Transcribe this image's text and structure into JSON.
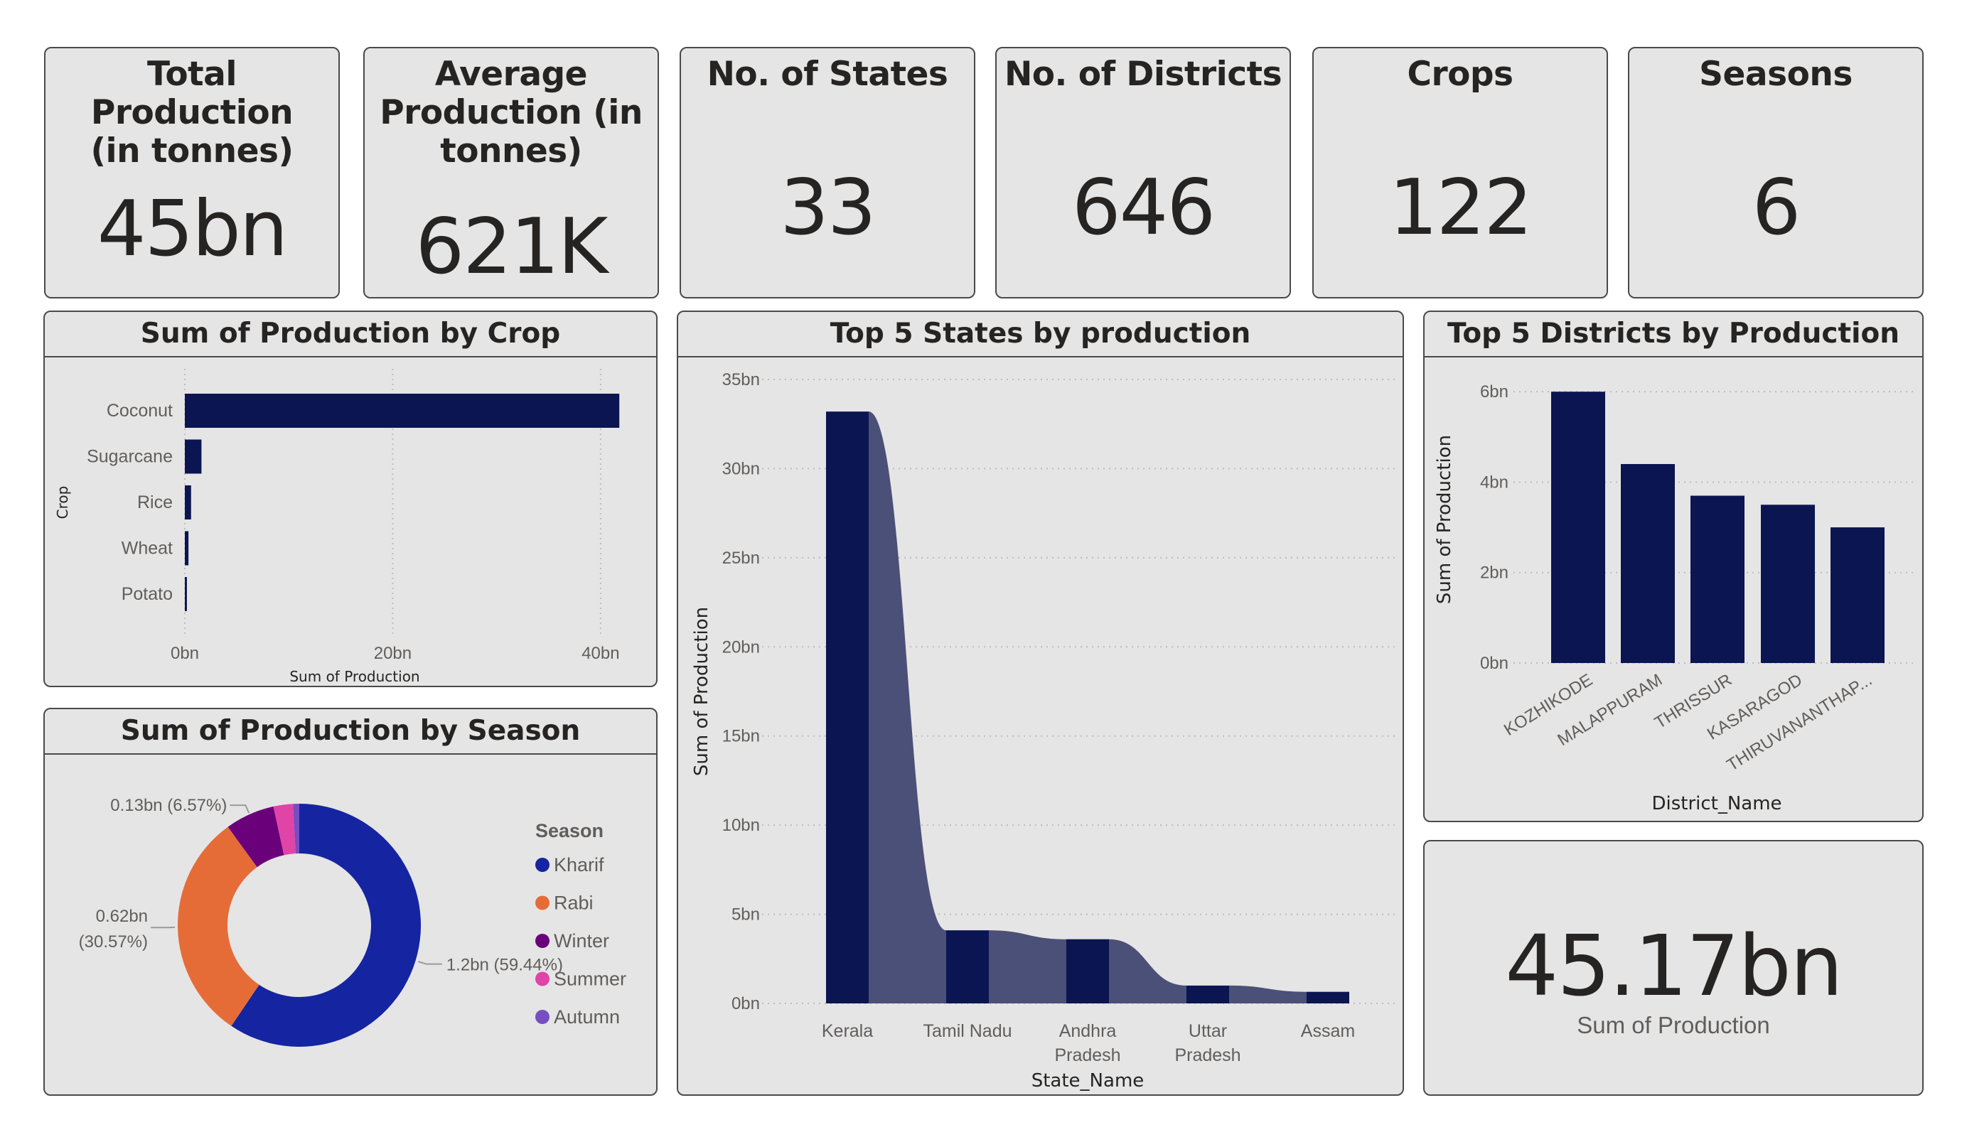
{
  "kpis": [
    {
      "title_lines": [
        "Total Production",
        "(in tonnes)"
      ],
      "value": "45bn"
    },
    {
      "title_lines": [
        "Average",
        "Production (in",
        "tonnes)"
      ],
      "value": "621K"
    },
    {
      "title_lines": [
        "No. of States"
      ],
      "value": "33"
    },
    {
      "title_lines": [
        "No. of Districts"
      ],
      "value": "646"
    },
    {
      "title_lines": [
        "Crops"
      ],
      "value": "122"
    },
    {
      "title_lines": [
        "Seasons"
      ],
      "value": "6"
    }
  ],
  "big_card": {
    "value": "45.17bn",
    "label": "Sum of Production"
  },
  "colors": {
    "bar": "#0b1551",
    "ribbon": "#4b5078",
    "kharif": "#1524a0",
    "rabi": "#e66c37",
    "winter": "#6b007b",
    "summer": "#e044a7",
    "autumn": "#744ec2"
  },
  "chart_data": [
    {
      "type": "bar",
      "orientation": "horizontal",
      "title": "Sum of Production by Crop",
      "categories": [
        "Coconut",
        "Sugarcane",
        "Rice",
        "Wheat",
        "Potato"
      ],
      "values": [
        41.8,
        1.6,
        0.6,
        0.35,
        0.2
      ],
      "value_unit": "bn tonnes",
      "xlabel": "Sum of Production",
      "ylabel": "Crop",
      "xlim": [
        0,
        45
      ],
      "x_ticks": [
        "0bn",
        "20bn",
        "40bn"
      ],
      "x_tick_values": [
        0,
        20,
        40
      ],
      "grid": true
    },
    {
      "type": "bar",
      "variant": "ribbon",
      "title": "Top 5 States by production",
      "categories": [
        "Kerala",
        "Tamil Nadu",
        "Andhra Pradesh",
        "Uttar Pradesh",
        "Assam"
      ],
      "category_lines": [
        [
          "Kerala"
        ],
        [
          "Tamil Nadu"
        ],
        [
          "Andhra",
          "Pradesh"
        ],
        [
          "Uttar",
          "Pradesh"
        ],
        [
          "Assam"
        ]
      ],
      "values": [
        33.2,
        4.1,
        3.6,
        1.0,
        0.65
      ],
      "value_unit": "bn tonnes",
      "xlabel": "State_Name",
      "ylabel": "Sum of Production",
      "ylim": [
        0,
        35
      ],
      "y_ticks": [
        "0bn",
        "5bn",
        "10bn",
        "15bn",
        "20bn",
        "25bn",
        "30bn",
        "35bn"
      ],
      "y_tick_values": [
        0,
        5,
        10,
        15,
        20,
        25,
        30,
        35
      ],
      "grid": true
    },
    {
      "type": "bar",
      "title": "Top 5 Districts by Production",
      "categories": [
        "KOZHIKODE",
        "MALAPPURAM",
        "THRISSUR",
        "KASARAGOD",
        "THIRUVANANTHAP..."
      ],
      "values": [
        6.0,
        4.4,
        3.7,
        3.5,
        3.0
      ],
      "value_unit": "bn tonnes",
      "xlabel": "District_Name",
      "ylabel": "Sum of Production",
      "ylim": [
        0,
        6.6
      ],
      "y_ticks": [
        "0bn",
        "2bn",
        "4bn",
        "6bn"
      ],
      "y_tick_values": [
        0,
        2,
        4,
        6
      ],
      "grid": true
    },
    {
      "type": "pie",
      "variant": "donut",
      "title": "Sum of Production by Season",
      "legend_title": "Season",
      "legend_position": "right",
      "labels": [
        "Kharif",
        "Rabi",
        "Winter",
        "Summer",
        "Autumn"
      ],
      "percentages": [
        59.44,
        30.57,
        6.57,
        2.6,
        0.82
      ],
      "data_labels": [
        {
          "index": 0,
          "lines": [
            "1.2bn (59.44%)"
          ]
        },
        {
          "index": 1,
          "lines": [
            "0.62bn",
            "(30.57%)"
          ]
        },
        {
          "index": 2,
          "lines": [
            "0.13bn (6.57%)"
          ]
        }
      ]
    }
  ]
}
